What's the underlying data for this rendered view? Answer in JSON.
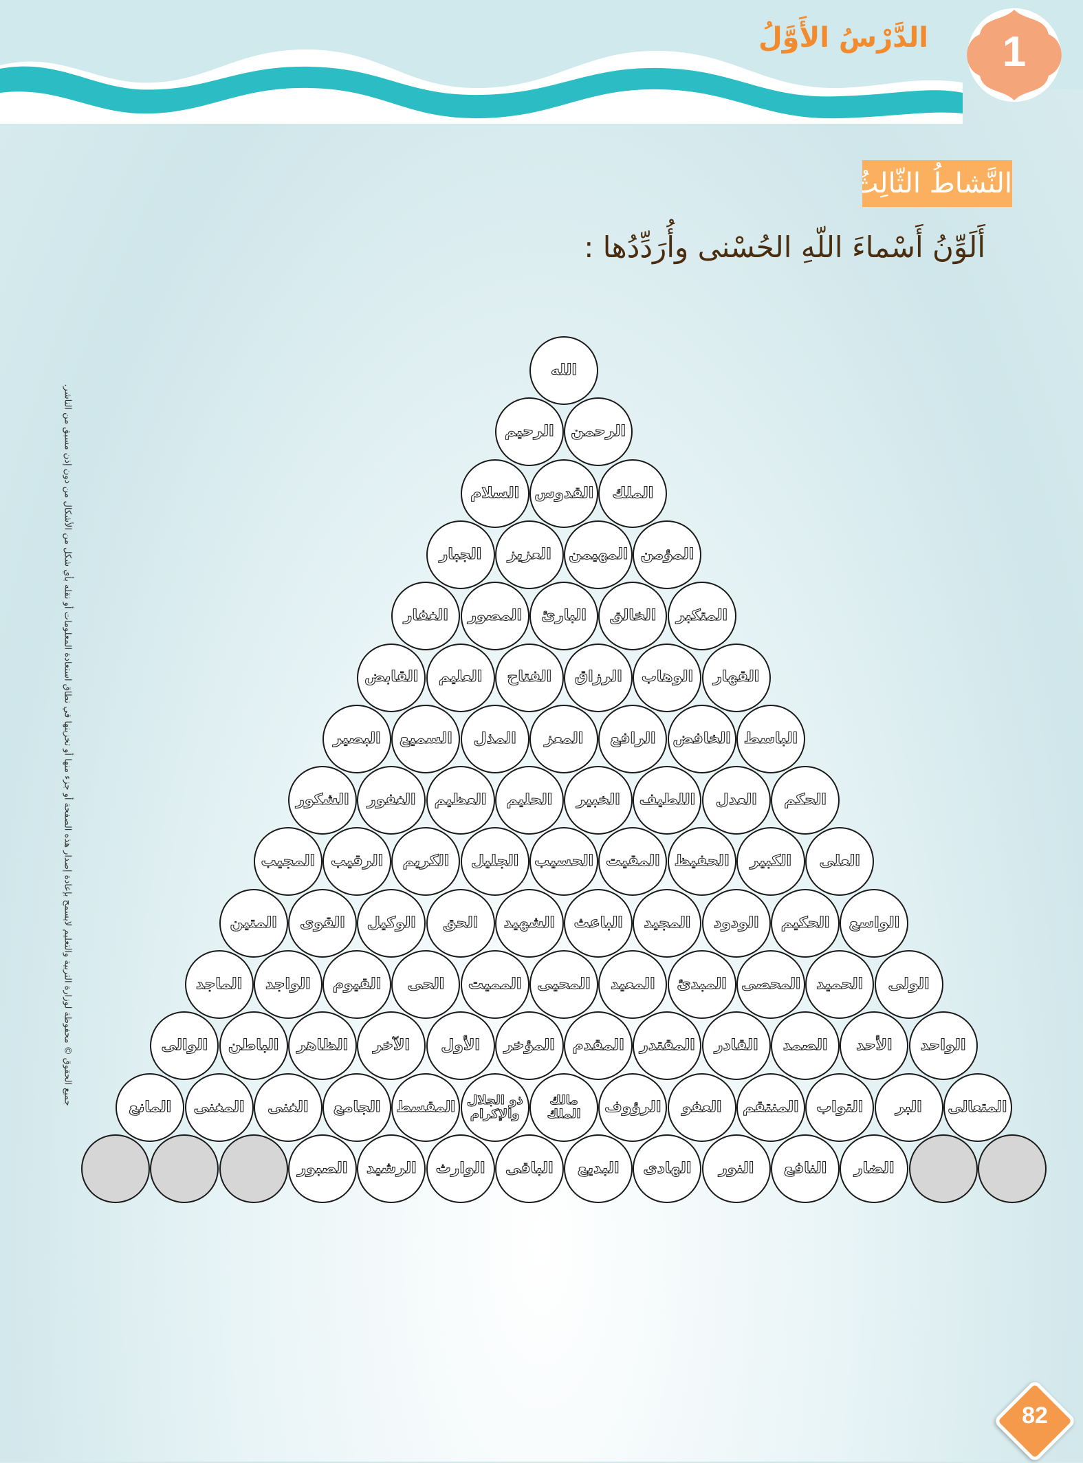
{
  "header": {
    "lesson_title": "الدَّرْسُ الأَوَّلُ",
    "lesson_number": "1",
    "colors": {
      "wave": "#2bbdc3",
      "accent": "#f28a2e",
      "badge": "#f5a57a"
    }
  },
  "activity": {
    "label": "النَّشاطُ الثّالِثُ:",
    "instruction": "أَلَوِّنُ أَسْماءَ اللّهِ الحُسْنى وأُرَدِّدُها :"
  },
  "side_note": "جميع الحقوق © محفوظة لوزارة التربية والتعليم لايسمح بإعادة إصدار هذه الصفحة أو جزء منها أو تخزينها في نطاق استعادة المعلومات أو نقله بأي شكل من الأشكال من دون إذن مسبق من الناشر.",
  "pyramid_rows": [
    [
      "الله"
    ],
    [
      "الرحيم",
      "الرحمن"
    ],
    [
      "السلام",
      "القدوس",
      "الملك"
    ],
    [
      "الجبار",
      "العزيز",
      "المهيمن",
      "المؤمن"
    ],
    [
      "الغفار",
      "المصور",
      "البارئ",
      "الخالق",
      "المتكبر"
    ],
    [
      "القابض",
      "العليم",
      "الفتاح",
      "الرزاق",
      "الوهاب",
      "القهار"
    ],
    [
      "البصير",
      "السميع",
      "المذل",
      "المعز",
      "الرافع",
      "الخافض",
      "الباسط"
    ],
    [
      "الشكور",
      "الغفور",
      "العظيم",
      "الحليم",
      "الخبير",
      "اللطيف",
      "العدل",
      "الحكم"
    ],
    [
      "المجيب",
      "الرقيب",
      "الكريم",
      "الجليل",
      "الحسيب",
      "المقيت",
      "الحفيظ",
      "الكبير",
      "العلى"
    ],
    [
      "المتين",
      "القوى",
      "الوكيل",
      "الحق",
      "الشهيد",
      "الباعث",
      "المجيد",
      "الودود",
      "الحكيم",
      "الواسع"
    ],
    [
      "الماجد",
      "الواجد",
      "القيوم",
      "الحى",
      "المميت",
      "المحيى",
      "المعيد",
      "المبدئ",
      "المحصى",
      "الحميد",
      "الولى"
    ],
    [
      "الوالى",
      "الباطن",
      "الظاهر",
      "الآخر",
      "الأول",
      "المؤخر",
      "المقدم",
      "المقتدر",
      "القادر",
      "الصمد",
      "الأحد",
      "الواحد"
    ],
    [
      "المانع",
      "المغنى",
      "الغنى",
      "الجامع",
      "المقسط",
      "ذو الجلال والإكرام",
      "مالك الملك",
      "الرؤوف",
      "العفو",
      "المنتقم",
      "التواب",
      "البر",
      "المتعالى"
    ],
    [
      "",
      "",
      "",
      "الصبور",
      "الرشيد",
      "الوارث",
      "الباقى",
      "البديع",
      "الهادى",
      "النور",
      "النافع",
      "الضار",
      "",
      ""
    ]
  ],
  "page_number": "82"
}
